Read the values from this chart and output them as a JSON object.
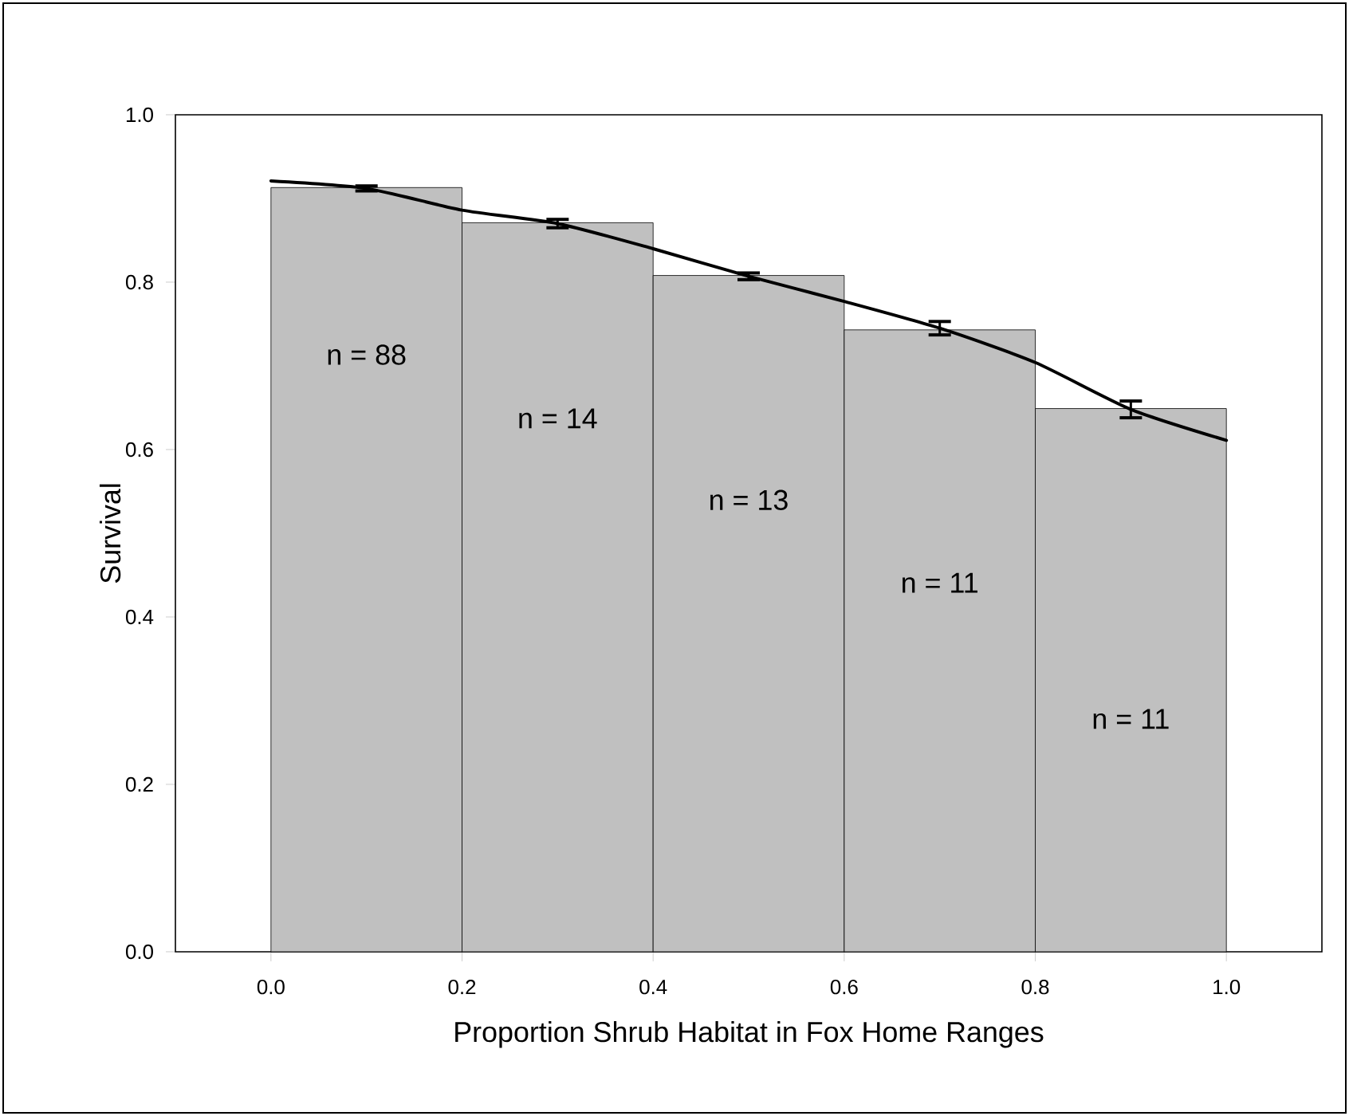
{
  "chart_data": {
    "type": "histogram",
    "xlabel": "Proportion Shrub Habitat in Fox Home Ranges",
    "ylabel": "Survival",
    "xlim": [
      -0.1,
      1.1
    ],
    "ylim": [
      0,
      1.0
    ],
    "xticks": [
      {
        "value": 0,
        "label": "0.0"
      },
      {
        "value": 0.2,
        "label": "0.2"
      },
      {
        "value": 0.4,
        "label": "0.4"
      },
      {
        "value": 0.6,
        "label": "0.6"
      },
      {
        "value": 0.8,
        "label": "0.8"
      },
      {
        "value": 1.0,
        "label": "1.0"
      }
    ],
    "yticks": [
      {
        "value": 0,
        "label": "0.0"
      },
      {
        "value": 0.2,
        "label": "0.2"
      },
      {
        "value": 0.4,
        "label": "0.4"
      },
      {
        "value": 0.6,
        "label": "0.6"
      },
      {
        "value": 0.8,
        "label": "0.8"
      },
      {
        "value": 1.0,
        "label": "1.0"
      }
    ],
    "grid": false,
    "series": [
      {
        "color": "#c0c0c0",
        "bins": [
          0,
          0.2,
          0.4,
          0.6,
          0.8,
          1.0
        ],
        "values": [
          0.913,
          0.871,
          0.808,
          0.743,
          0.649
        ]
      },
      {
        "type": "line",
        "color": "#000000",
        "line_style": "solid",
        "x": [
          0,
          0.1,
          0.2,
          0.3,
          0.4,
          0.5,
          0.6,
          0.7,
          0.8,
          0.9,
          1.0
        ],
        "values": [
          0.921,
          0.912,
          0.886,
          0.87,
          0.84,
          0.807,
          0.777,
          0.745,
          0.704,
          0.648,
          0.611
        ],
        "errors": [
          null,
          0.003,
          null,
          0.005,
          null,
          0.004,
          null,
          0.008,
          null,
          0.01,
          null
        ]
      }
    ],
    "annotations": [
      "n = 88",
      "n = 14",
      "n = 13",
      "n = 11",
      "n = 11"
    ]
  }
}
